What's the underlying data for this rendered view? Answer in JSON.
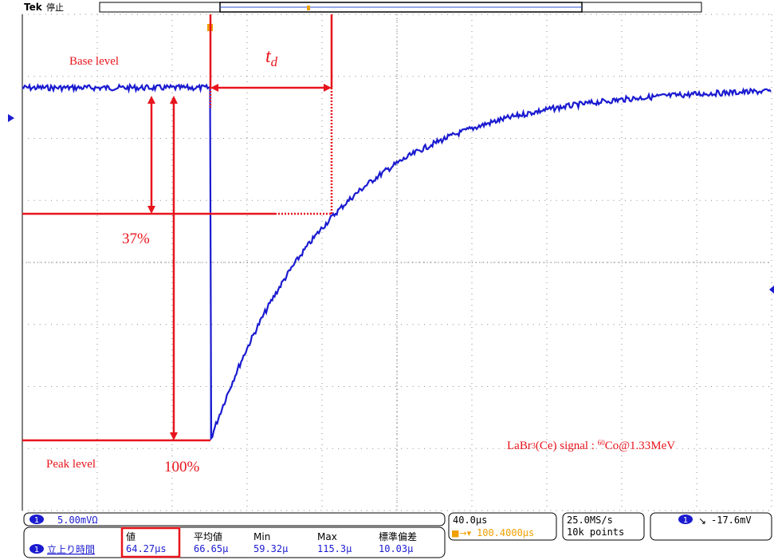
{
  "header": {
    "brand": "Tek",
    "state": "停止"
  },
  "annotations": {
    "base_level": "Base level",
    "delay_label": "t",
    "delay_subscript": "d",
    "percent_37": "37%",
    "peak_level": "Peak level",
    "percent_100": "100%",
    "signal_prefix": "LaBr",
    "signal_sub": "3",
    "signal_mid": "(Ce) signal : ",
    "isotope_mass": "60",
    "signal_suffix": "Co@1.33MeV"
  },
  "status": {
    "channel": "1",
    "scale": "5.00mVΩ",
    "timebase": "40.0μs",
    "trigger_position": "100.4000μs",
    "sample_rate": "25.0MS/s",
    "record_length": "10k points",
    "trigger_channel": "1",
    "trigger_level": "-17.6mV"
  },
  "measurement": {
    "channel": "1",
    "name": "立上り時間",
    "columns": [
      "値",
      "平均値",
      "Min",
      "Max",
      "標準偏差"
    ],
    "values": [
      "64.27μs",
      "66.65μ",
      "59.32μ",
      "115.3μ",
      "10.03μ"
    ]
  }
}
